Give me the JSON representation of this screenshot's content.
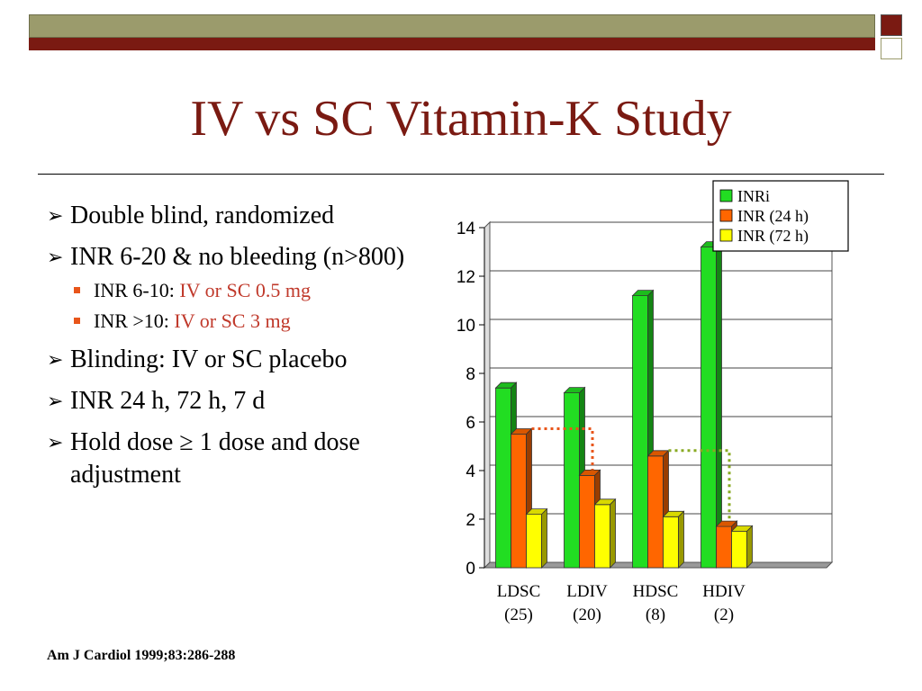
{
  "title": "IV vs SC Vitamin-K Study",
  "bullets": [
    {
      "text": "Double blind, randomized"
    },
    {
      "text": "INR 6-20 & no bleeding (n>800)",
      "sub": [
        {
          "label": "INR 6-10: ",
          "value": "IV or SC 0.5 mg"
        },
        {
          "label": "INR >10: ",
          "value": "IV or SC 3 mg"
        }
      ]
    },
    {
      "text": "Blinding: IV or SC placebo"
    },
    {
      "text": "INR 24 h, 72 h, 7 d"
    },
    {
      "text": "Hold dose ≥ 1 dose and dose adjustment"
    }
  ],
  "reference": "Am J Cardiol 1999;83:286-288",
  "colors": {
    "accent": "#7a1a12",
    "olive": "#9b9b6c",
    "sub_value": "#c0392b"
  },
  "chart_data": {
    "type": "bar",
    "categories": [
      "LDSC",
      "LDIV",
      "HDSC",
      "HDIV"
    ],
    "category_counts": [
      "(25)",
      "(20)",
      "(8)",
      "(2)"
    ],
    "series": [
      {
        "name": "INRi",
        "color": "#22dd22",
        "values": [
          7.4,
          7.2,
          11.2,
          13.2
        ]
      },
      {
        "name": "INR (24 h)",
        "color": "#ff6600",
        "values": [
          5.5,
          3.8,
          4.6,
          1.7
        ]
      },
      {
        "name": "INR (72 h)",
        "color": "#ffff00",
        "values": [
          2.2,
          2.6,
          2.1,
          1.5
        ]
      }
    ],
    "ylim": [
      0,
      14
    ],
    "yticks": [
      0,
      2,
      4,
      6,
      8,
      10,
      12,
      14
    ],
    "grid": true,
    "legend": "top-right",
    "annotations": [
      {
        "type": "dotted-bracket",
        "from": "LDSC",
        "to": "LDIV",
        "series": "INR (24 h)",
        "color": "#e8551a"
      },
      {
        "type": "dotted-bracket",
        "from": "HDSC",
        "to": "HDIV",
        "series": "INR (24 h)",
        "color": "#88aa22"
      }
    ]
  }
}
